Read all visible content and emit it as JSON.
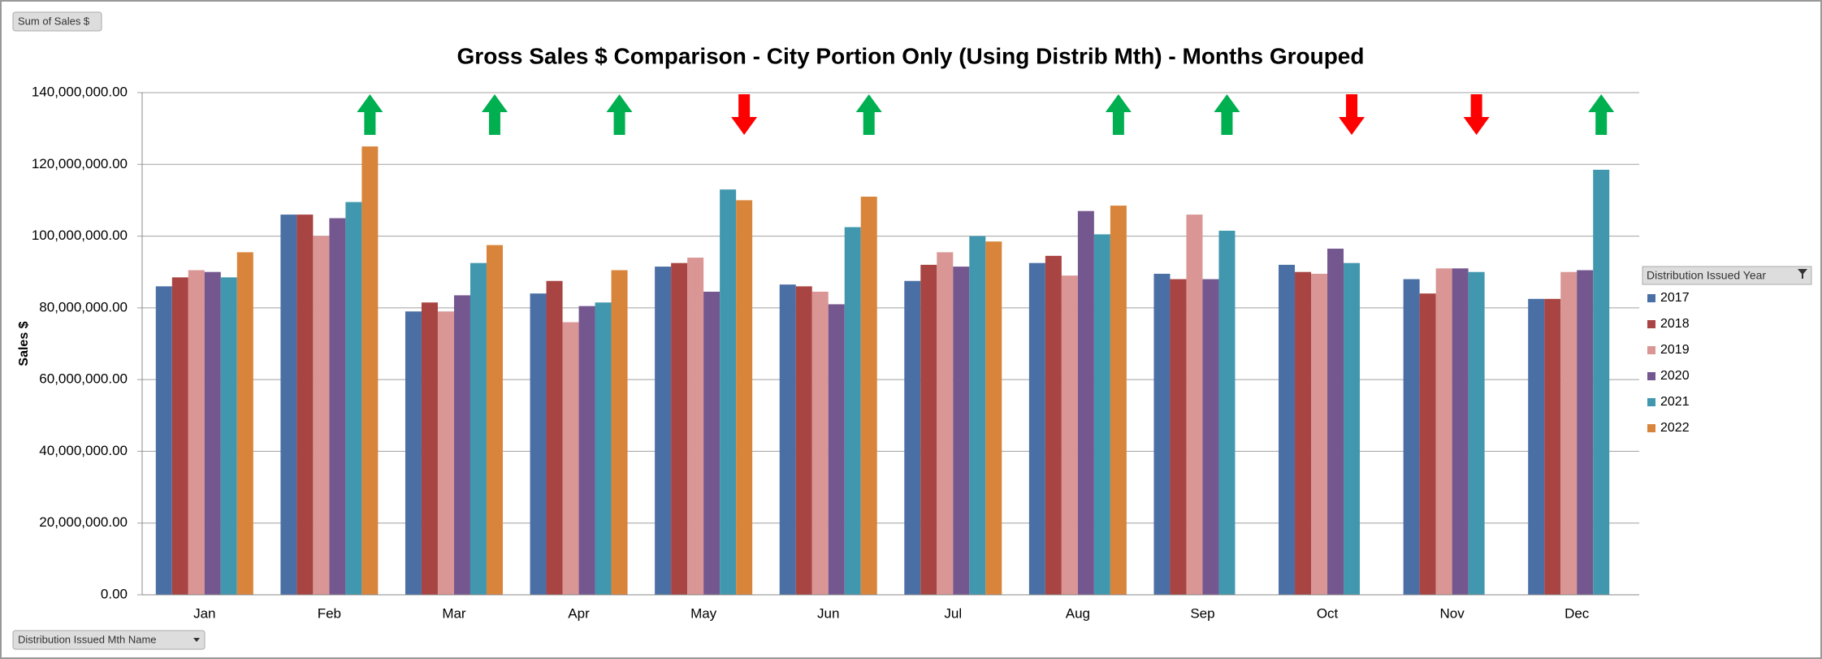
{
  "chart_data": {
    "type": "bar",
    "title": "Gross Sales $ Comparison - City Portion Only (Using Distrib Mth) - Months Grouped",
    "y_label": "Sales $",
    "value_field_button": "Sum of Sales $",
    "category_field_button": "Distribution Issued Mth Name",
    "legend_title": "Distribution Issued Year",
    "legend_position": "right",
    "grid": true,
    "categories": [
      "Jan",
      "Feb",
      "Mar",
      "Apr",
      "May",
      "Jun",
      "Jul",
      "Aug",
      "Sep",
      "Oct",
      "Nov",
      "Dec"
    ],
    "series": [
      {
        "name": "2017",
        "color": "#4a6fa5",
        "values": [
          86000000,
          106000000,
          79000000,
          84000000,
          91500000,
          86500000,
          87500000,
          92500000,
          89500000,
          92000000,
          88000000,
          82500000
        ]
      },
      {
        "name": "2018",
        "color": "#a84442",
        "values": [
          88500000,
          106000000,
          81500000,
          87500000,
          92500000,
          86000000,
          92000000,
          94500000,
          88000000,
          90000000,
          84000000,
          82500000
        ]
      },
      {
        "name": "2019",
        "color": "#d99694",
        "values": [
          90500000,
          100000000,
          79000000,
          76000000,
          94000000,
          84500000,
          95500000,
          89000000,
          106000000,
          89500000,
          91000000,
          90000000
        ]
      },
      {
        "name": "2020",
        "color": "#75578f",
        "values": [
          90000000,
          105000000,
          83500000,
          80500000,
          84500000,
          81000000,
          91500000,
          107000000,
          88000000,
          96500000,
          91000000,
          90500000
        ]
      },
      {
        "name": "2021",
        "color": "#4198ae",
        "values": [
          88500000,
          109500000,
          92500000,
          81500000,
          113000000,
          102500000,
          100000000,
          100500000,
          101500000,
          92500000,
          90000000,
          118500000
        ]
      },
      {
        "name": "2022",
        "color": "#d9843b",
        "values": [
          95500000,
          125000000,
          97500000,
          90500000,
          110000000,
          111000000,
          98500000,
          108500000,
          null,
          null,
          null,
          null
        ]
      }
    ],
    "arrows": [
      null,
      "up",
      "up",
      "up",
      "down",
      "up",
      null,
      "up",
      "up",
      "down",
      "down",
      "up"
    ],
    "arrow_colors": {
      "up": "#00b050",
      "down": "#ff0000"
    },
    "ylim": [
      0,
      140000000
    ],
    "yticks": [
      {
        "value": 0,
        "label": "0.00"
      },
      {
        "value": 20000000,
        "label": "20,000,000.00"
      },
      {
        "value": 40000000,
        "label": "40,000,000.00"
      },
      {
        "value": 60000000,
        "label": "60,000,000.00"
      },
      {
        "value": 80000000,
        "label": "80,000,000.00"
      },
      {
        "value": 100000000,
        "label": "100,000,000.00"
      },
      {
        "value": 120000000,
        "label": "120,000,000.00"
      },
      {
        "value": 140000000,
        "label": "140,000,000.00"
      }
    ]
  }
}
